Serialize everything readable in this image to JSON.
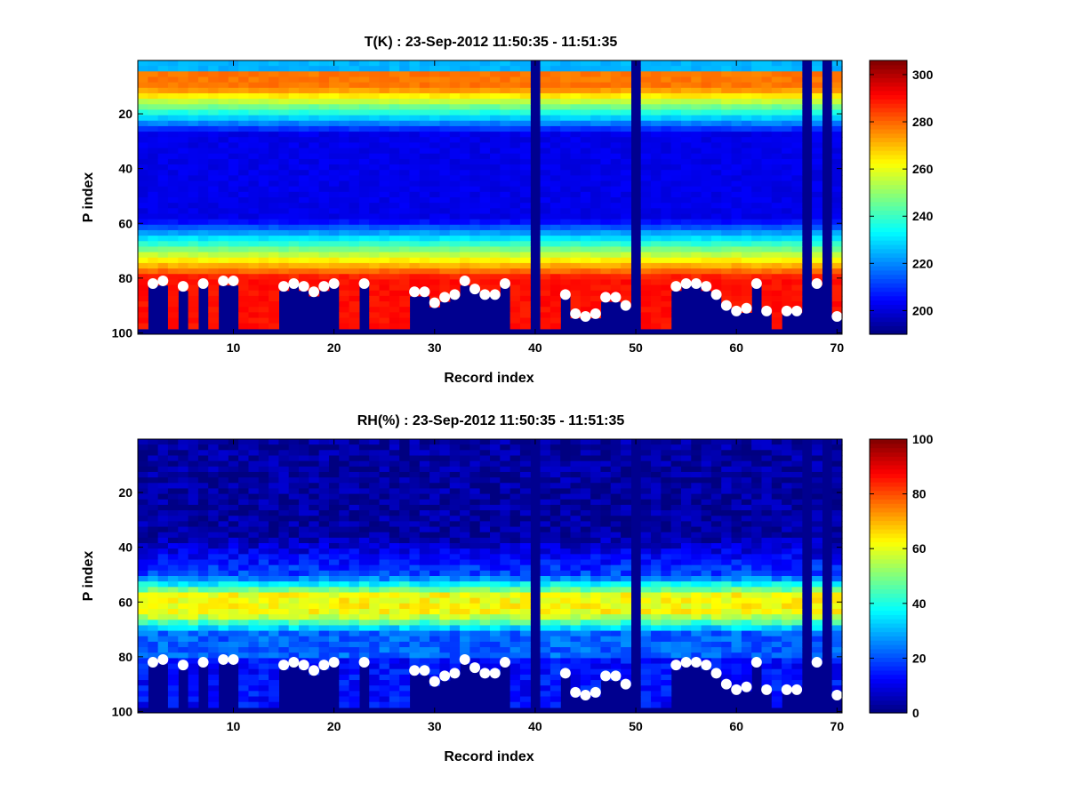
{
  "chart_data": [
    {
      "type": "heatmap",
      "title": "T(K) : 23-Sep-2012 11:50:35 - 11:51:35",
      "xlabel": "Record index",
      "ylabel": "P index",
      "xlim": [
        1,
        70
      ],
      "ylim": [
        1,
        100
      ],
      "y_reversed": true,
      "xticks": [
        10,
        20,
        30,
        40,
        50,
        60,
        70
      ],
      "yticks": [
        20,
        40,
        60,
        80,
        100
      ],
      "colorbar": {
        "clim": [
          190,
          306
        ],
        "ticks": [
          200,
          220,
          240,
          260,
          280,
          300
        ],
        "colormap": "jet"
      },
      "missing_records": [
        40,
        50,
        67,
        69
      ],
      "markers": [
        [
          2,
          82
        ],
        [
          3,
          81
        ],
        [
          5,
          83
        ],
        [
          7,
          82
        ],
        [
          9,
          81
        ],
        [
          10,
          81
        ],
        [
          15,
          83
        ],
        [
          16,
          82
        ],
        [
          17,
          83
        ],
        [
          18,
          85
        ],
        [
          19,
          83
        ],
        [
          20,
          82
        ],
        [
          23,
          82
        ],
        [
          28,
          85
        ],
        [
          29,
          85
        ],
        [
          30,
          89
        ],
        [
          31,
          87
        ],
        [
          32,
          86
        ],
        [
          33,
          81
        ],
        [
          34,
          84
        ],
        [
          35,
          86
        ],
        [
          36,
          86
        ],
        [
          37,
          82
        ],
        [
          43,
          86
        ],
        [
          44,
          93
        ],
        [
          45,
          94
        ],
        [
          46,
          93
        ],
        [
          47,
          87
        ],
        [
          48,
          87
        ],
        [
          49,
          90
        ],
        [
          54,
          83
        ],
        [
          55,
          82
        ],
        [
          56,
          82
        ],
        [
          57,
          83
        ],
        [
          58,
          86
        ],
        [
          59,
          90
        ],
        [
          60,
          92
        ],
        [
          61,
          91
        ],
        [
          62,
          82
        ],
        [
          63,
          92
        ],
        [
          65,
          92
        ],
        [
          66,
          92
        ],
        [
          68,
          82
        ],
        [
          70,
          94
        ]
      ]
    },
    {
      "type": "heatmap",
      "title": "RH(%) : 23-Sep-2012 11:50:35 - 11:51:35",
      "xlabel": "Record index",
      "ylabel": "P index",
      "xlim": [
        1,
        70
      ],
      "ylim": [
        1,
        100
      ],
      "y_reversed": true,
      "xticks": [
        10,
        20,
        30,
        40,
        50,
        60,
        70
      ],
      "yticks": [
        20,
        40,
        60,
        80,
        100
      ],
      "colorbar": {
        "clim": [
          0,
          100
        ],
        "ticks": [
          0,
          20,
          40,
          60,
          80,
          100
        ],
        "colormap": "jet"
      },
      "missing_records": [
        40,
        50,
        67,
        69
      ],
      "markers": [
        [
          2,
          82
        ],
        [
          3,
          81
        ],
        [
          5,
          83
        ],
        [
          7,
          82
        ],
        [
          9,
          81
        ],
        [
          10,
          81
        ],
        [
          15,
          83
        ],
        [
          16,
          82
        ],
        [
          17,
          83
        ],
        [
          18,
          85
        ],
        [
          19,
          83
        ],
        [
          20,
          82
        ],
        [
          23,
          82
        ],
        [
          28,
          85
        ],
        [
          29,
          85
        ],
        [
          30,
          89
        ],
        [
          31,
          87
        ],
        [
          32,
          86
        ],
        [
          33,
          81
        ],
        [
          34,
          84
        ],
        [
          35,
          86
        ],
        [
          36,
          86
        ],
        [
          37,
          82
        ],
        [
          43,
          86
        ],
        [
          44,
          93
        ],
        [
          45,
          94
        ],
        [
          46,
          93
        ],
        [
          47,
          87
        ],
        [
          48,
          87
        ],
        [
          49,
          90
        ],
        [
          54,
          83
        ],
        [
          55,
          82
        ],
        [
          56,
          82
        ],
        [
          57,
          83
        ],
        [
          58,
          86
        ],
        [
          59,
          90
        ],
        [
          60,
          92
        ],
        [
          61,
          91
        ],
        [
          62,
          82
        ],
        [
          63,
          92
        ],
        [
          65,
          92
        ],
        [
          66,
          92
        ],
        [
          68,
          82
        ],
        [
          70,
          94
        ]
      ]
    }
  ]
}
